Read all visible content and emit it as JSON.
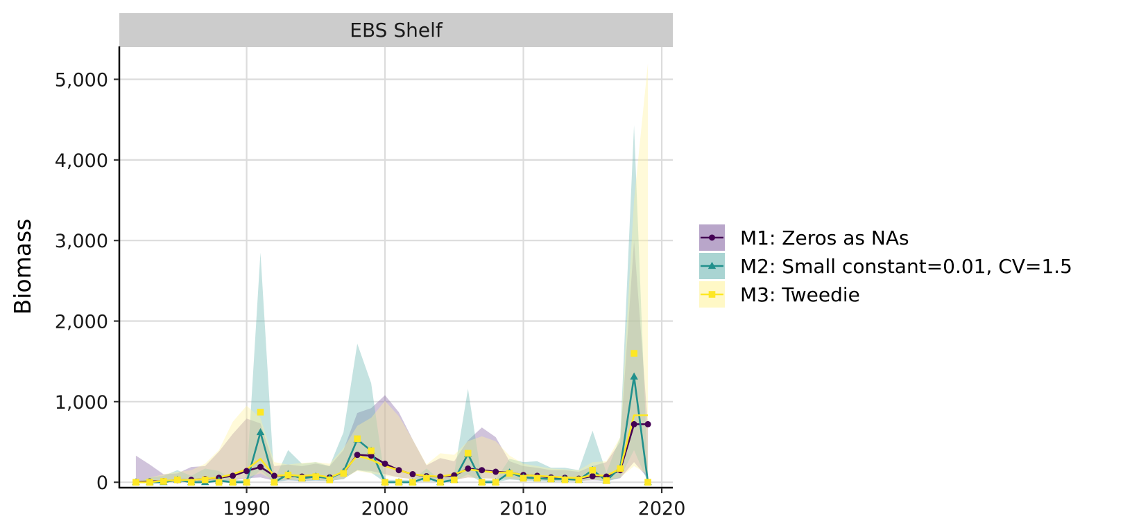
{
  "chart_data": {
    "type": "line",
    "title": "",
    "panel": "EBS Shelf",
    "xlabel": "",
    "ylabel": "Biomass",
    "xlim": [
      1980.8,
      2020.8
    ],
    "ylim": [
      -50,
      5400
    ],
    "x_ticks": [
      1990,
      2000,
      2010,
      2020
    ],
    "y_ticks": [
      0,
      1000,
      2000,
      3000,
      4000,
      5000
    ],
    "y_tick_labels": [
      "0",
      "1,000",
      "2,000",
      "3,000",
      "4,000",
      "5,000"
    ],
    "grid": true,
    "legend_position": "right",
    "x": [
      1982,
      1983,
      1984,
      1985,
      1986,
      1987,
      1988,
      1989,
      1990,
      1991,
      1992,
      1993,
      1994,
      1995,
      1996,
      1997,
      1998,
      1999,
      2000,
      2001,
      2002,
      2003,
      2004,
      2005,
      2006,
      2007,
      2008,
      2009,
      2010,
      2011,
      2012,
      2013,
      2014,
      2015,
      2016,
      2017,
      2018,
      2019
    ],
    "series": [
      {
        "name": "M1: Zeros as NAs",
        "color": "#440154",
        "fill": "#8a6aa6",
        "marker": "circle",
        "values": [
          5,
          10,
          15,
          25,
          30,
          40,
          55,
          80,
          140,
          190,
          80,
          80,
          70,
          75,
          60,
          120,
          340,
          330,
          230,
          150,
          100,
          75,
          70,
          85,
          170,
          150,
          130,
          120,
          90,
          80,
          60,
          55,
          45,
          75,
          70,
          150,
          720,
          720
        ],
        "lower": [
          0,
          0,
          0,
          5,
          5,
          10,
          15,
          25,
          50,
          60,
          20,
          25,
          20,
          25,
          20,
          40,
          150,
          140,
          100,
          60,
          40,
          30,
          25,
          30,
          60,
          50,
          45,
          40,
          30,
          30,
          20,
          20,
          15,
          25,
          20,
          50,
          250,
          50
        ],
        "upper": [
          330,
          220,
          100,
          110,
          190,
          200,
          380,
          600,
          790,
          730,
          200,
          220,
          200,
          230,
          200,
          400,
          860,
          920,
          1080,
          870,
          530,
          210,
          300,
          260,
          520,
          680,
          560,
          260,
          200,
          180,
          150,
          150,
          130,
          200,
          250,
          500,
          3000,
          700
        ]
      },
      {
        "name": "M2: Small constant=0.01, CV=1.5",
        "color": "#21908c",
        "fill": "#6fb8b4",
        "marker": "triangle",
        "values": [
          0,
          0,
          0,
          30,
          0,
          0,
          20,
          0,
          0,
          620,
          0,
          100,
          50,
          70,
          50,
          130,
          530,
          390,
          0,
          0,
          0,
          60,
          0,
          30,
          350,
          0,
          0,
          120,
          60,
          50,
          40,
          40,
          30,
          150,
          20,
          180,
          1310,
          0
        ],
        "lower": [
          0,
          0,
          0,
          10,
          0,
          0,
          5,
          0,
          0,
          150,
          0,
          25,
          15,
          20,
          15,
          40,
          150,
          120,
          0,
          0,
          0,
          15,
          0,
          10,
          100,
          0,
          0,
          35,
          20,
          15,
          10,
          10,
          10,
          40,
          5,
          60,
          400,
          0
        ],
        "upper": [
          0,
          60,
          80,
          150,
          80,
          170,
          140,
          30,
          30,
          2850,
          30,
          400,
          230,
          250,
          200,
          620,
          1720,
          1230,
          30,
          30,
          30,
          170,
          30,
          110,
          1160,
          30,
          30,
          290,
          250,
          260,
          180,
          180,
          150,
          640,
          120,
          560,
          4430,
          30
        ]
      },
      {
        "name": "M3: Tweedie",
        "color": "#fde725",
        "fill": "#fff3a0",
        "marker": "square",
        "values": [
          0,
          0,
          20,
          25,
          30,
          40,
          60,
          100,
          160,
          290,
          80,
          90,
          80,
          90,
          60,
          130,
          330,
          280,
          200,
          150,
          100,
          80,
          70,
          100,
          160,
          140,
          120,
          120,
          90,
          80,
          70,
          60,
          50,
          90,
          80,
          170,
          830,
          830
        ],
        "lower": [
          0,
          0,
          5,
          10,
          10,
          15,
          20,
          35,
          60,
          110,
          25,
          30,
          25,
          30,
          20,
          45,
          140,
          110,
          80,
          60,
          40,
          30,
          25,
          35,
          60,
          50,
          40,
          40,
          30,
          30,
          25,
          20,
          15,
          30,
          25,
          60,
          200,
          100
        ],
        "upper": [
          0,
          60,
          100,
          130,
          150,
          230,
          400,
          750,
          950,
          800,
          250,
          220,
          240,
          250,
          230,
          420,
          700,
          800,
          1010,
          820,
          530,
          220,
          360,
          340,
          510,
          570,
          510,
          330,
          230,
          200,
          170,
          160,
          150,
          250,
          260,
          560,
          3500,
          5200
        ],
        "points": [
          0,
          0,
          10,
          30,
          0,
          30,
          0,
          0,
          0,
          870,
          0,
          90,
          50,
          70,
          30,
          110,
          540,
          390,
          0,
          0,
          0,
          50,
          0,
          30,
          360,
          0,
          0,
          110,
          50,
          50,
          40,
          30,
          30,
          150,
          20,
          170,
          1600,
          0
        ]
      }
    ]
  }
}
